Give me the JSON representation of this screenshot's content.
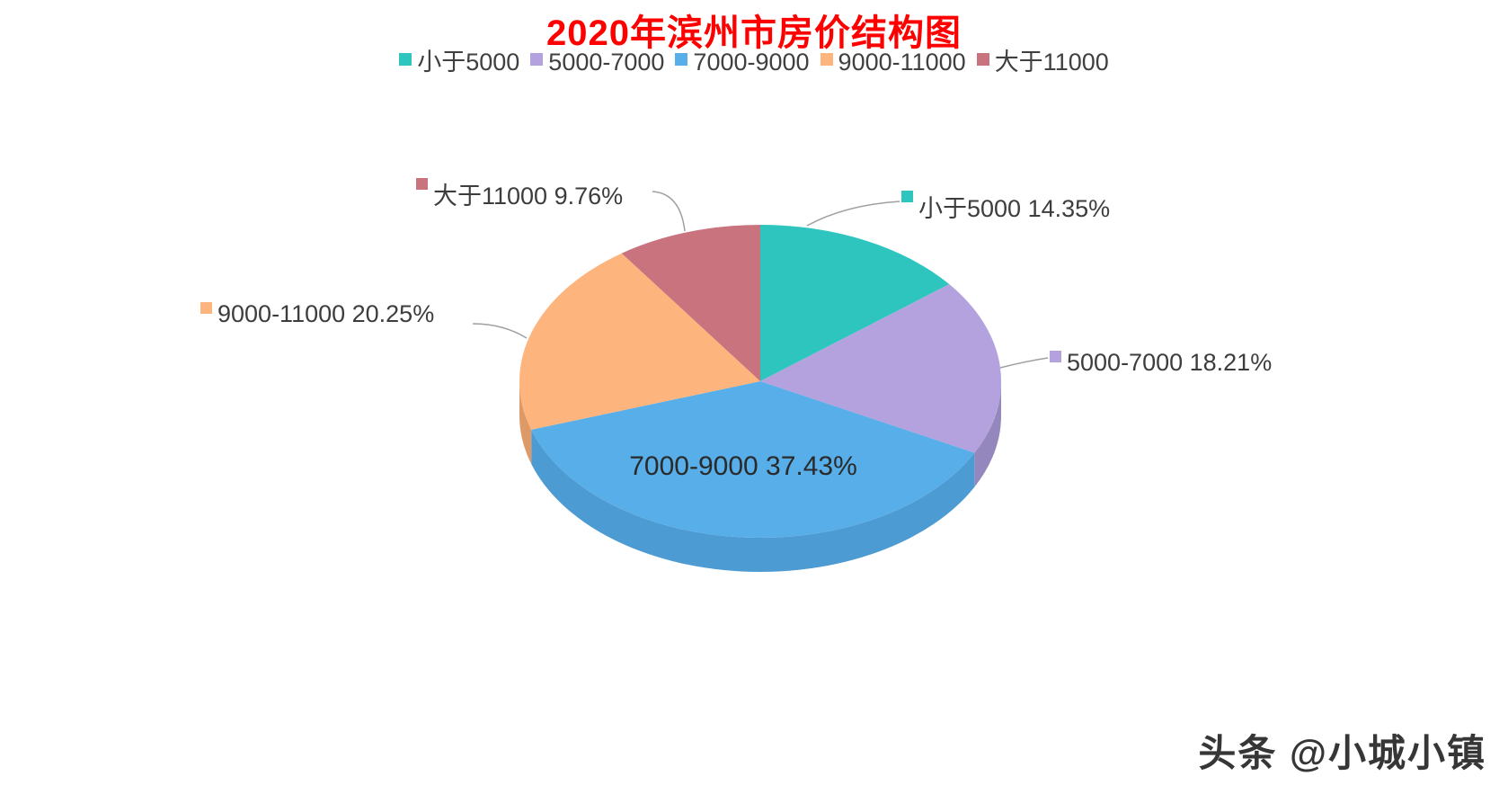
{
  "page": {
    "background": "#ffffff"
  },
  "title": {
    "text": "2020年滨州市房价结构图",
    "color": "#fe0000"
  },
  "watermark": {
    "text": "头条 @小城小镇",
    "color": "#262626"
  },
  "chart_data": {
    "type": "pie",
    "style": "3d",
    "title": "2020年滨州市房价结构图",
    "legend_position": "top",
    "start_angle_deg": 0,
    "direction": "clockwise",
    "categories": [
      "小于5000",
      "5000-7000",
      "7000-9000",
      "9000-11000",
      "大于11000"
    ],
    "values": [
      14.35,
      18.21,
      37.43,
      20.25,
      9.76
    ],
    "unit": "%",
    "colors": [
      "#2ec5bf",
      "#b3a2dd",
      "#58aee8",
      "#fdb57d",
      "#c8737e"
    ],
    "side_colors": [
      "#26a19c",
      "#9487bd",
      "#4d9bd3",
      "#dd9a66",
      "#a95f6a"
    ],
    "slice_labels": [
      "小于5000 14.35%",
      "5000-7000 18.21%",
      "7000-9000 37.43%",
      "9000-11000 20.25%",
      "大于11000 9.76%"
    ],
    "label_text_color": "#3d3d3d",
    "leader_line_color": "#a0a0a0"
  }
}
